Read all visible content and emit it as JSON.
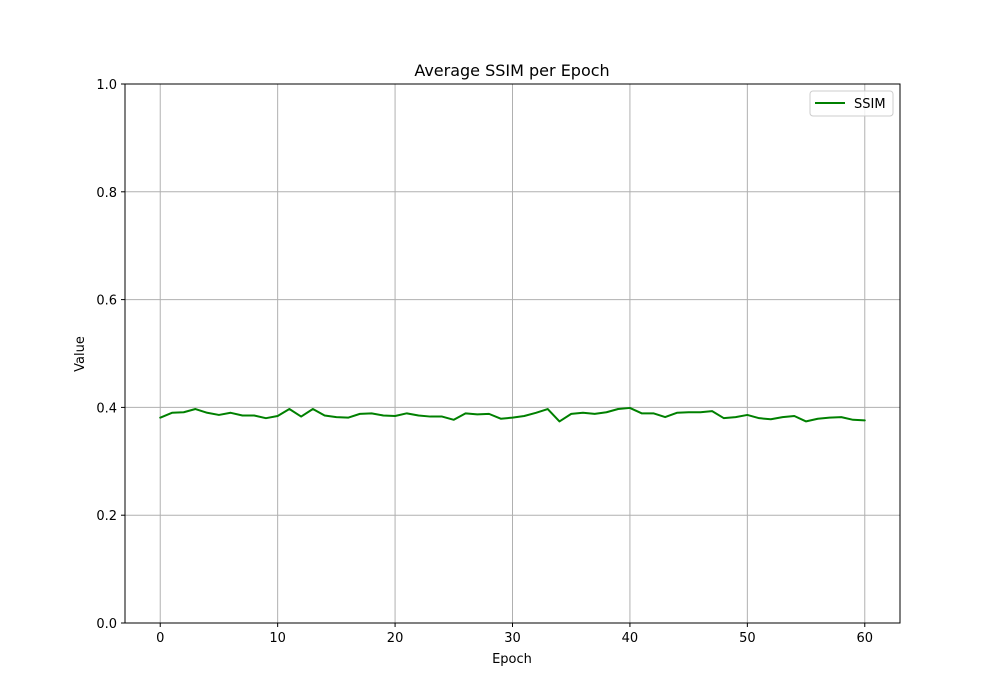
{
  "chart_data": {
    "type": "line",
    "title": "Average SSIM per Epoch",
    "xlabel": "Epoch",
    "ylabel": "Value",
    "xlim": [
      -3,
      63
    ],
    "ylim": [
      0,
      1
    ],
    "xticks": [
      0,
      10,
      20,
      30,
      40,
      50,
      60
    ],
    "yticks": [
      0.0,
      0.2,
      0.4,
      0.6,
      0.8,
      1.0
    ],
    "ytick_labels": [
      "0.0",
      "0.2",
      "0.4",
      "0.6",
      "0.8",
      "1.0"
    ],
    "grid": true,
    "legend_position": "top-right",
    "series": [
      {
        "name": "SSIM",
        "color": "#008000",
        "x": [
          0,
          1,
          2,
          3,
          4,
          5,
          6,
          7,
          8,
          9,
          10,
          11,
          12,
          13,
          14,
          15,
          16,
          17,
          18,
          19,
          20,
          21,
          22,
          23,
          24,
          25,
          26,
          27,
          28,
          29,
          30,
          31,
          32,
          33,
          34,
          35,
          36,
          37,
          38,
          39,
          40,
          41,
          42,
          43,
          44,
          45,
          46,
          47,
          48,
          49,
          50,
          51,
          52,
          53,
          54,
          55,
          56,
          57,
          58,
          59,
          60
        ],
        "y": [
          0.381,
          0.39,
          0.391,
          0.397,
          0.39,
          0.386,
          0.39,
          0.385,
          0.385,
          0.38,
          0.384,
          0.397,
          0.383,
          0.397,
          0.385,
          0.382,
          0.381,
          0.388,
          0.389,
          0.385,
          0.384,
          0.389,
          0.385,
          0.383,
          0.383,
          0.377,
          0.389,
          0.387,
          0.388,
          0.379,
          0.381,
          0.384,
          0.39,
          0.397,
          0.374,
          0.388,
          0.39,
          0.388,
          0.391,
          0.397,
          0.399,
          0.389,
          0.389,
          0.382,
          0.39,
          0.391,
          0.391,
          0.393,
          0.38,
          0.382,
          0.386,
          0.38,
          0.378,
          0.382,
          0.384,
          0.374,
          0.379,
          0.381,
          0.382,
          0.377,
          0.376
        ]
      }
    ]
  }
}
